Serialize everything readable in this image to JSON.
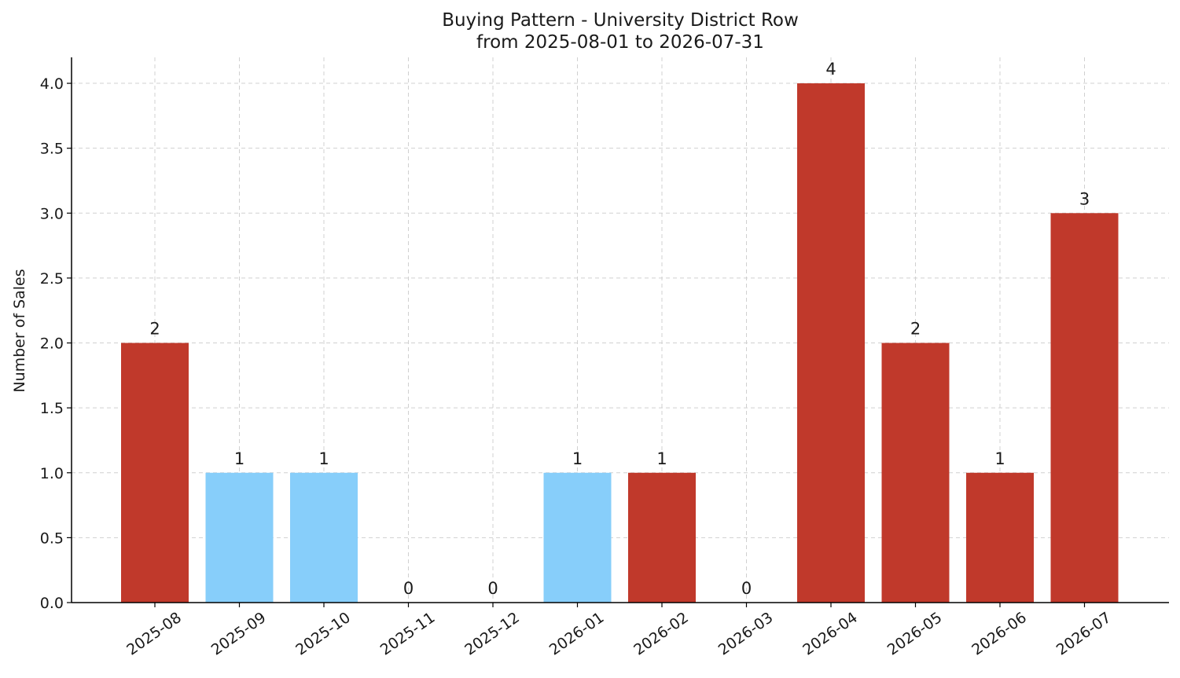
{
  "chart_data": {
    "type": "bar",
    "title": "Buying Pattern - University District Row",
    "subtitle": "from 2025-08-01 to 2026-07-31",
    "xlabel": "",
    "ylabel": "Number of Sales",
    "categories": [
      "2025-08",
      "2025-09",
      "2025-10",
      "2025-11",
      "2025-12",
      "2026-01",
      "2026-02",
      "2026-03",
      "2026-04",
      "2026-05",
      "2026-06",
      "2026-07"
    ],
    "values": [
      2,
      1,
      1,
      0,
      0,
      1,
      1,
      0,
      4,
      2,
      1,
      3
    ],
    "data_labels": [
      "2",
      "1",
      "1",
      "0",
      "0",
      "1",
      "1",
      "0",
      "4",
      "2",
      "1",
      "3"
    ],
    "bar_colors": [
      "#c0392b",
      "#87cefa",
      "#87cefa",
      "#c0392b",
      "#c0392b",
      "#87cefa",
      "#c0392b",
      "#c0392b",
      "#c0392b",
      "#c0392b",
      "#c0392b",
      "#c0392b"
    ],
    "ylim": [
      0,
      4.2
    ],
    "yticks": [
      "0.0",
      "0.5",
      "1.0",
      "1.5",
      "2.0",
      "2.5",
      "3.0",
      "3.5",
      "4.0"
    ],
    "grid": true,
    "legend": "none"
  }
}
